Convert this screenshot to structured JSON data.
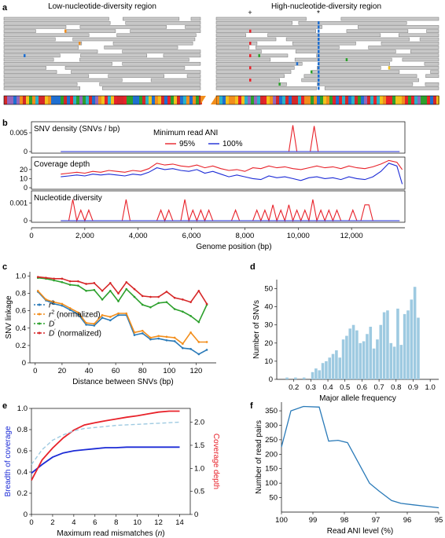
{
  "figure": {
    "panel_letters": [
      "a",
      "b",
      "c",
      "d",
      "e",
      "f"
    ]
  },
  "panel_a": {
    "left_title": "Low-nucleotide-diversity region",
    "right_title": "High-nucleotide-diversity region",
    "markers": [
      "+",
      "*"
    ]
  },
  "chart_data": [
    {
      "id": "b",
      "type": "line",
      "xlabel": "Genome position (bp)",
      "xticks": [
        2000,
        4000,
        6000,
        8000,
        10000,
        12000
      ],
      "xtick_labels": [
        "2,000",
        "4,000",
        "6,000",
        "8,000",
        "10,000",
        "12,000"
      ],
      "xlim": [
        0,
        14000
      ],
      "legend_title": "Minimum read ANI",
      "legend_position": "top-center",
      "series_names": [
        "95%",
        "100%"
      ],
      "series_colors": [
        "#e8222a",
        "#1c2bd6"
      ],
      "subplots": [
        {
          "title": "SNV density (SNVs / bp)",
          "yticks": [
            0,
            0.005
          ],
          "ytick_labels": [
            "0",
            "0.005"
          ],
          "ylim": [
            0,
            0.0075
          ],
          "series": [
            {
              "name": "95%",
              "x": [
                1100,
                9500,
                9650,
                9800,
                9950,
                10100,
                10450,
                10600,
                10750,
                10900,
                13800
              ],
              "y": [
                0,
                0,
                0,
                0.007,
                0,
                0,
                0,
                0.0068,
                0,
                0,
                0
              ]
            },
            {
              "name": "100%",
              "x": [
                1100,
                13800
              ],
              "y": [
                0,
                0
              ]
            }
          ]
        },
        {
          "title": "Coverage depth",
          "yticks": [
            0,
            10,
            20
          ],
          "ytick_labels": [
            "0",
            "10",
            "20"
          ],
          "ylim": [
            0,
            32
          ],
          "series": [
            {
              "name": "95%",
              "x": [
                1100,
                1400,
                1700,
                2000,
                2300,
                2600,
                2900,
                3200,
                3500,
                3800,
                4100,
                4400,
                4700,
                5000,
                5300,
                5600,
                5900,
                6200,
                6500,
                6800,
                7100,
                7400,
                7700,
                8000,
                8300,
                8600,
                8900,
                9200,
                9500,
                9800,
                10100,
                10400,
                10700,
                11000,
                11300,
                11600,
                11900,
                12200,
                12500,
                12800,
                13100,
                13400,
                13700,
                13900
              ],
              "y": [
                15,
                16,
                17,
                16,
                18,
                17,
                19,
                18,
                17,
                19,
                18,
                21,
                27,
                25,
                26,
                24,
                23,
                25,
                22,
                24,
                21,
                19,
                20,
                18,
                22,
                21,
                24,
                22,
                23,
                21,
                20,
                22,
                24,
                22,
                23,
                21,
                24,
                22,
                21,
                23,
                26,
                30,
                28,
                20
              ]
            },
            {
              "name": "100%",
              "x": [
                1100,
                1400,
                1700,
                2000,
                2300,
                2600,
                2900,
                3200,
                3500,
                3800,
                4100,
                4400,
                4700,
                5000,
                5300,
                5600,
                5900,
                6200,
                6500,
                6800,
                7100,
                7400,
                7700,
                8000,
                8300,
                8600,
                8900,
                9200,
                9500,
                9800,
                10100,
                10400,
                10700,
                11000,
                11300,
                11600,
                11900,
                12200,
                12500,
                12800,
                13100,
                13400,
                13700,
                13900
              ],
              "y": [
                12,
                13,
                14,
                13,
                15,
                14,
                15,
                14,
                13,
                15,
                14,
                17,
                22,
                20,
                21,
                19,
                18,
                20,
                16,
                18,
                15,
                12,
                14,
                12,
                10,
                9,
                13,
                11,
                12,
                10,
                8,
                11,
                12,
                10,
                11,
                9,
                12,
                10,
                9,
                12,
                18,
                27,
                24,
                4
              ]
            }
          ]
        },
        {
          "title": "Nucleotide diversity",
          "yticks": [
            0,
            0.001
          ],
          "ytick_labels": [
            "0",
            "0.001"
          ],
          "ylim": [
            0,
            0.0016
          ],
          "series": [
            {
              "name": "95%",
              "x": [
                1100,
                1400,
                1550,
                1700,
                1850,
                2000,
                2150,
                2300,
                3400,
                3550,
                3700,
                3850,
                4700,
                4850,
                5000,
                5150,
                5300,
                5600,
                5750,
                5900,
                6050,
                6200,
                6350,
                6500,
                6650,
                6800,
                7500,
                7650,
                7800,
                8300,
                8450,
                8600,
                8750,
                8900,
                9050,
                9200,
                9350,
                9500,
                9650,
                9800,
                9950,
                10100,
                10250,
                10400,
                10550,
                10700,
                10850,
                11000,
                11150,
                11300,
                11450,
                11600,
                11900,
                12050,
                12200,
                12350,
                12500,
                12650,
                12800,
                13800
              ],
              "y": [
                0,
                0,
                0.0012,
                0,
                0.0006,
                0,
                0.0006,
                0,
                0,
                0.0012,
                0,
                0,
                0,
                0.0006,
                0,
                0.0006,
                0,
                0,
                0.0012,
                0,
                0.0006,
                0,
                0.0006,
                0,
                0.0006,
                0,
                0,
                0.0006,
                0,
                0,
                0.0006,
                0,
                0.0006,
                0,
                0.0009,
                0,
                0.0006,
                0,
                0.0009,
                0,
                0.0006,
                0,
                0.0006,
                0,
                0.0012,
                0,
                0.0006,
                0,
                0.0006,
                0,
                0.0006,
                0,
                0,
                0.0006,
                0,
                0,
                0.0009,
                0.0009,
                0,
                0
              ]
            },
            {
              "name": "100%",
              "x": [
                1100,
                13800
              ],
              "y": [
                0,
                0
              ]
            }
          ]
        }
      ]
    },
    {
      "id": "c",
      "type": "line",
      "xlabel": "Distance between SNVs (bp)",
      "ylabel": "SNV linkage",
      "xticks": [
        0,
        20,
        40,
        60,
        80,
        100,
        120
      ],
      "yticks": [
        0,
        0.2,
        0.4,
        0.6,
        0.8,
        1.0
      ],
      "ytick_labels": [
        "0",
        "0.2",
        "0.4",
        "0.6",
        "0.8",
        "1.0"
      ],
      "xlim": [
        -4,
        135
      ],
      "ylim": [
        0,
        1.05
      ],
      "legend_position": "bottom-left",
      "x": [
        2,
        8,
        14,
        20,
        26,
        32,
        38,
        44,
        50,
        56,
        62,
        68,
        74,
        80,
        86,
        92,
        98,
        104,
        110,
        116,
        122,
        128
      ],
      "series": [
        {
          "name": "r",
          "superscript": "2",
          "suffix": "",
          "color": "#2a7ab8",
          "values": [
            0.82,
            0.72,
            0.68,
            0.66,
            0.61,
            0.56,
            0.44,
            0.43,
            0.52,
            0.49,
            0.55,
            0.55,
            0.32,
            0.34,
            0.27,
            0.28,
            0.26,
            0.25,
            0.17,
            0.16,
            0.1,
            0.15
          ]
        },
        {
          "name": "r",
          "superscript": "2",
          "suffix": " (normalized)",
          "color": "#f28e1c",
          "values": [
            0.83,
            0.73,
            0.7,
            0.68,
            0.63,
            0.58,
            0.46,
            0.45,
            0.55,
            0.53,
            0.57,
            0.57,
            0.35,
            0.37,
            0.29,
            0.31,
            0.3,
            0.29,
            0.22,
            0.35,
            0.24,
            0.24
          ]
        },
        {
          "name": "D",
          "superscript": "′",
          "suffix": "",
          "color": "#2ca02c",
          "values": [
            0.98,
            0.97,
            0.95,
            0.93,
            0.9,
            0.89,
            0.83,
            0.84,
            0.73,
            0.83,
            0.71,
            0.85,
            0.76,
            0.67,
            0.64,
            0.69,
            0.7,
            0.62,
            0.59,
            0.54,
            0.47,
            0.67
          ]
        },
        {
          "name": "D",
          "superscript": "′",
          "suffix": " (normalized)",
          "color": "#d62728",
          "values": [
            0.99,
            0.98,
            0.97,
            0.97,
            0.94,
            0.94,
            0.91,
            0.92,
            0.83,
            0.92,
            0.8,
            0.93,
            0.85,
            0.77,
            0.76,
            0.76,
            0.82,
            0.75,
            0.73,
            0.7,
            0.83,
            0.68
          ]
        }
      ]
    },
    {
      "id": "d",
      "type": "bar",
      "xlabel": "Major allele frequency",
      "ylabel": "Number of SNVs",
      "xticks": [
        0.2,
        0.3,
        0.4,
        0.5,
        0.6,
        0.7,
        0.8,
        0.9,
        1.0
      ],
      "xtick_labels": [
        "0.2",
        "0.3",
        "0.4",
        "0.5",
        "0.6",
        "0.7",
        "0.8",
        "0.9",
        "1.0"
      ],
      "yticks": [
        0,
        10,
        20,
        30,
        40,
        50
      ],
      "xlim": [
        0.1,
        1.05
      ],
      "ylim": [
        0,
        55
      ],
      "bin_width": 0.0165,
      "color": "#9ecae1",
      "bin_centers": [
        0.16,
        0.21,
        0.26,
        0.31,
        0.33,
        0.35,
        0.37,
        0.39,
        0.41,
        0.43,
        0.45,
        0.47,
        0.49,
        0.51,
        0.53,
        0.55,
        0.57,
        0.59,
        0.61,
        0.63,
        0.65,
        0.67,
        0.69,
        0.71,
        0.73,
        0.75,
        0.77,
        0.79,
        0.81,
        0.83,
        0.85,
        0.87,
        0.89,
        0.91,
        0.93
      ],
      "values": [
        1,
        1,
        1,
        4,
        6,
        5,
        9,
        10,
        12,
        14,
        16,
        12,
        22,
        24,
        28,
        30,
        27,
        20,
        21,
        25,
        29,
        17,
        22,
        30,
        37,
        38,
        20,
        18,
        39,
        19,
        36,
        38,
        44,
        51,
        34
      ]
    },
    {
      "id": "e",
      "type": "line",
      "xlabel": "Maximum read mismatches (",
      "xlabel_var": "n",
      "xlabel_end": ")",
      "ylabel_left": "Breadth of coverage",
      "ylabel_right": "Coverage depth",
      "xticks": [
        0,
        2,
        4,
        6,
        8,
        10,
        12,
        14
      ],
      "yticks_left": [
        0,
        0.2,
        0.4,
        0.6,
        0.8,
        1.0
      ],
      "yticks_left_labels": [
        "0",
        "0.2",
        "0.4",
        "0.6",
        "0.8",
        "1.0"
      ],
      "yticks_right": [
        0,
        0.5,
        1.0,
        1.5,
        2.0
      ],
      "yticks_right_labels": [
        "0",
        "0.5",
        "1.0",
        "1.5",
        "2.0"
      ],
      "xlim": [
        0,
        15
      ],
      "ylim_left": [
        0,
        1.0
      ],
      "ylim_right": [
        0,
        2.3
      ],
      "x": [
        0,
        1,
        2,
        3,
        4,
        5,
        6,
        7,
        8,
        9,
        10,
        11,
        12,
        13,
        14
      ],
      "series": [
        {
          "name": "Breadth of coverage",
          "axis": "left",
          "color": "#1c2bd6",
          "style": "solid",
          "values": [
            0.39,
            0.47,
            0.54,
            0.58,
            0.6,
            0.61,
            0.62,
            0.63,
            0.63,
            0.635,
            0.635,
            0.635,
            0.635,
            0.635,
            0.635
          ]
        },
        {
          "name": "Coverage depth",
          "axis": "right",
          "color": "#e8222a",
          "style": "solid",
          "values": [
            0.74,
            1.18,
            1.44,
            1.66,
            1.83,
            1.94,
            1.99,
            2.03,
            2.07,
            2.11,
            2.14,
            2.18,
            2.22,
            2.24,
            2.24
          ]
        },
        {
          "name": "breadth-dashed",
          "axis": "left",
          "color": "#9ecae1",
          "style": "dashed",
          "values": [
            0.47,
            0.61,
            0.7,
            0.75,
            0.79,
            0.81,
            0.82,
            0.83,
            0.84,
            0.845,
            0.85,
            0.855,
            0.86,
            0.865,
            0.87
          ]
        }
      ]
    },
    {
      "id": "f",
      "type": "line",
      "xlabel": "Read ANI level (%)",
      "ylabel": "Number of read pairs",
      "xticks": [
        100,
        99,
        98,
        97,
        96,
        95
      ],
      "yticks": [
        50,
        100,
        150,
        200,
        250,
        300,
        350
      ],
      "xlim": [
        100,
        95
      ],
      "ylim": [
        0,
        380
      ],
      "color": "#2a7ab8",
      "x": [
        100,
        99.7,
        99.3,
        98.8,
        98.5,
        98.2,
        97.9,
        97.6,
        97.2,
        96.9,
        96.5,
        96.2,
        95.8,
        95.4,
        95.0
      ],
      "values": [
        225,
        350,
        365,
        363,
        245,
        248,
        240,
        180,
        100,
        73,
        40,
        30,
        25,
        20,
        15
      ]
    }
  ]
}
